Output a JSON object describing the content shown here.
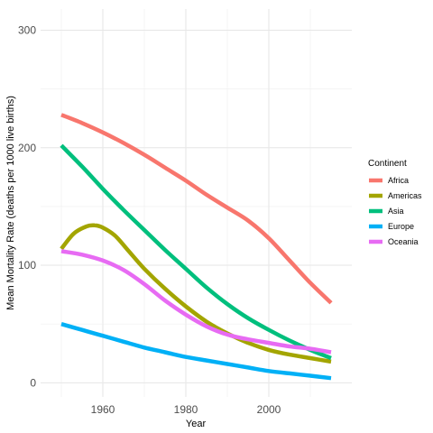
{
  "chart_data": {
    "type": "line",
    "xlabel": "Year",
    "ylabel": "Mean Mortality Rate (deaths per 1000 live births)",
    "xlim": [
      1945,
      2020
    ],
    "ylim": [
      -12,
      318
    ],
    "xticks": [
      1960,
      1980,
      2000
    ],
    "xtick_labels": [
      "1960",
      "1980",
      "2000"
    ],
    "yticks": [
      0,
      100,
      200,
      300
    ],
    "ytick_labels": [
      "0",
      "100",
      "200",
      "300"
    ],
    "grid": true,
    "legend": {
      "title": "Continent",
      "placement": "right"
    },
    "series": [
      {
        "name": "Africa",
        "color": "#F8766D",
        "x": [
          1950,
          1955,
          1960,
          1965,
          1970,
          1975,
          1980,
          1985,
          1990,
          1995,
          2000,
          2005,
          2010,
          2015
        ],
        "y": [
          228,
          221,
          213,
          204,
          194,
          183,
          172,
          160,
          149,
          138,
          123,
          104,
          85,
          68
        ]
      },
      {
        "name": "Americas",
        "color": "#A3A500",
        "x": [
          1950,
          1953,
          1956,
          1958,
          1960,
          1963,
          1966,
          1970,
          1975,
          1980,
          1985,
          1990,
          1995,
          2000,
          2005,
          2010,
          2015
        ],
        "y": [
          114,
          127,
          133,
          134,
          132,
          125,
          113,
          97,
          80,
          65,
          52,
          42,
          34,
          28,
          24,
          21,
          18
        ]
      },
      {
        "name": "Asia",
        "color": "#00BF7D",
        "x": [
          1950,
          1955,
          1960,
          1965,
          1970,
          1975,
          1980,
          1985,
          1990,
          1995,
          2000,
          2005,
          2010,
          2015
        ],
        "y": [
          202,
          184,
          165,
          147,
          130,
          113,
          97,
          81,
          67,
          55,
          45,
          36,
          28,
          21
        ]
      },
      {
        "name": "Europe",
        "color": "#00B0F6",
        "x": [
          1950,
          1955,
          1960,
          1965,
          1970,
          1975,
          1980,
          1985,
          1990,
          1995,
          2000,
          2005,
          2010,
          2015
        ],
        "y": [
          50,
          45,
          40,
          35,
          30,
          26,
          22,
          19,
          16,
          13,
          10,
          8,
          6,
          4
        ]
      },
      {
        "name": "Oceania",
        "color": "#E76BF3",
        "x": [
          1950,
          1955,
          1960,
          1965,
          1970,
          1975,
          1980,
          1985,
          1990,
          1995,
          2000,
          2005,
          2010,
          2015
        ],
        "y": [
          112,
          109,
          104,
          96,
          84,
          70,
          58,
          48,
          41,
          37,
          34,
          31,
          29,
          26
        ]
      }
    ]
  }
}
